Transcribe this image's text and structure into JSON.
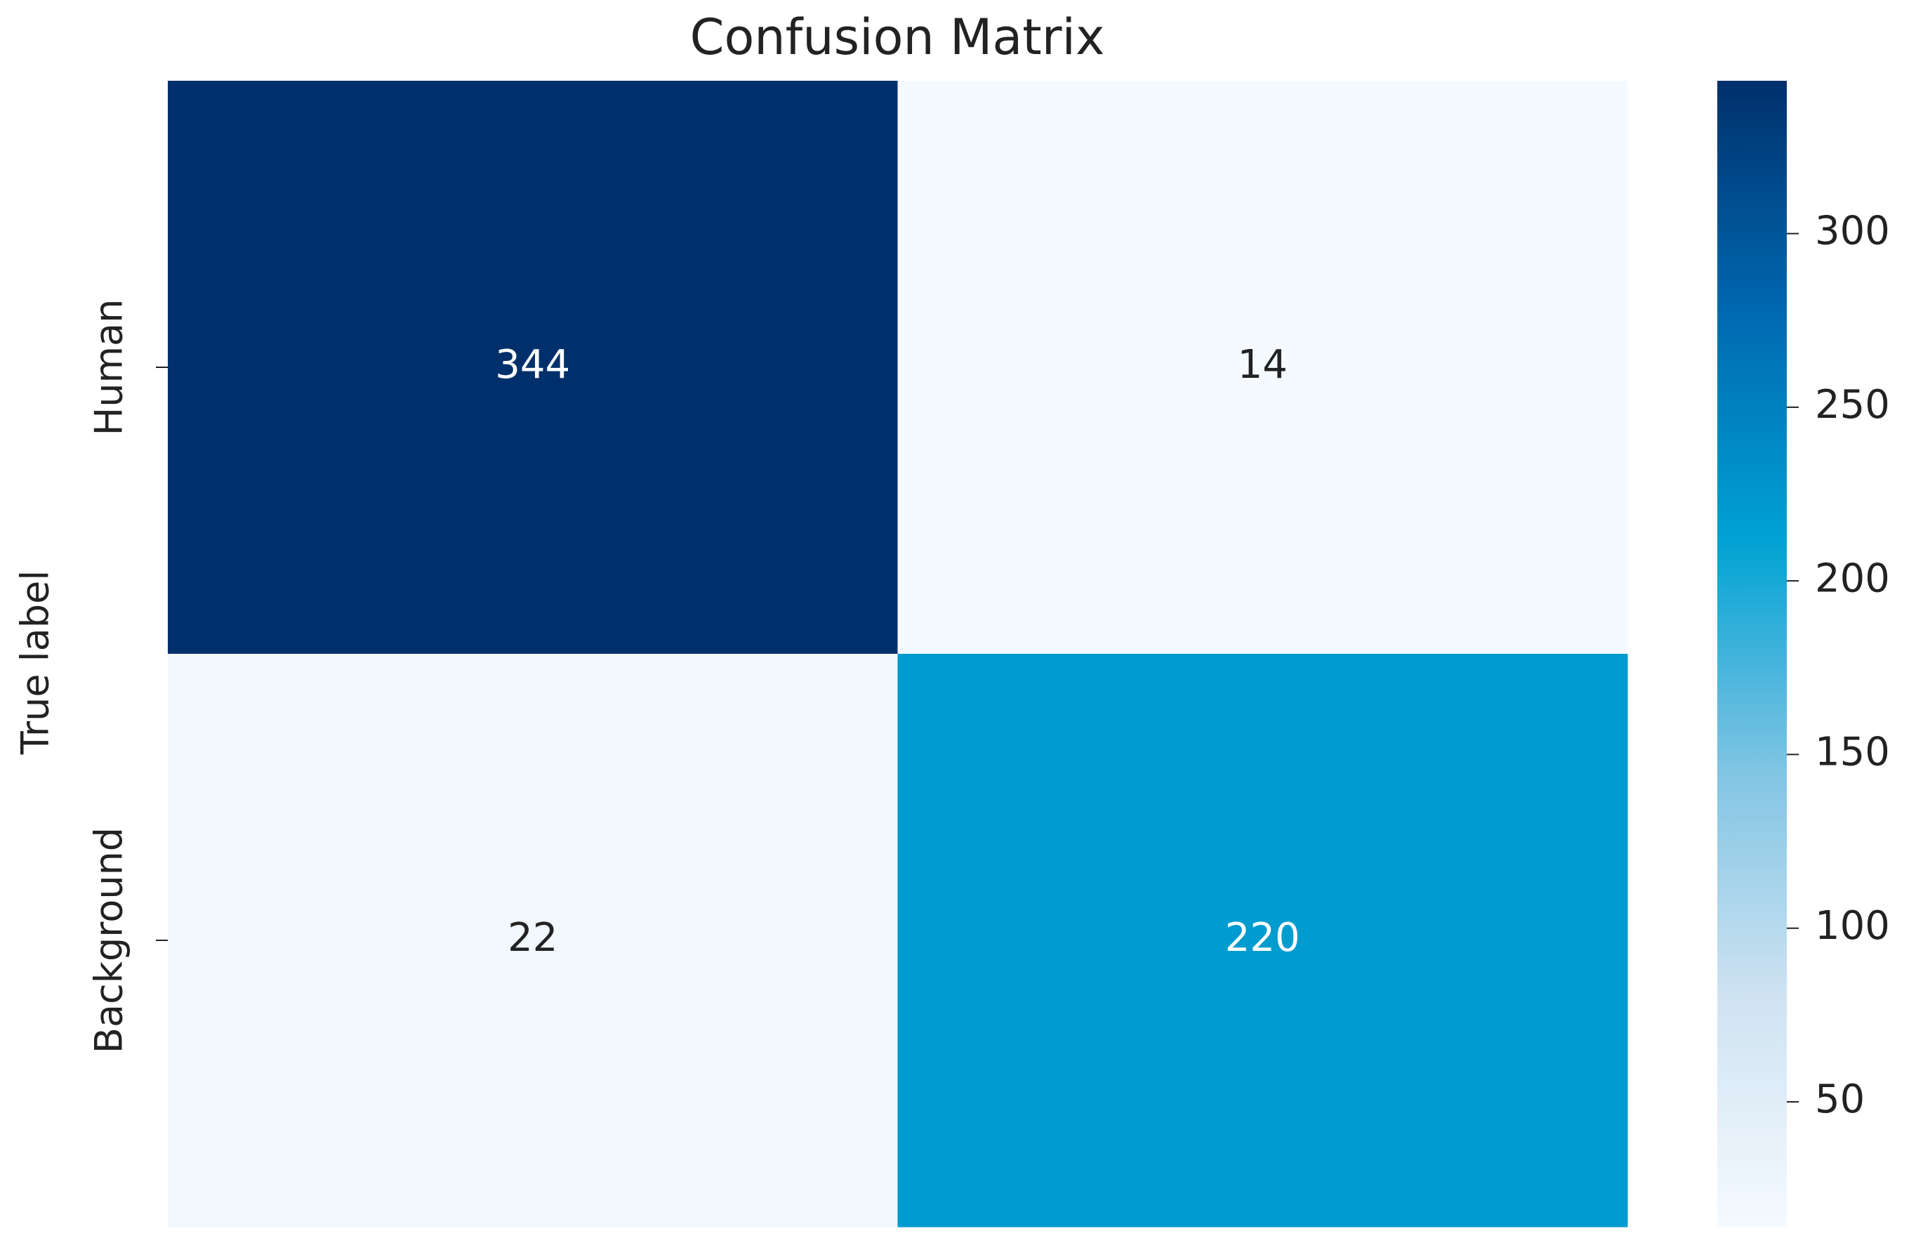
{
  "chart_data": {
    "type": "heatmap",
    "title": "Confusion Matrix",
    "y_label": "True label",
    "rows": [
      "Human",
      "Background"
    ],
    "values": [
      [
        344,
        14
      ],
      [
        22,
        220
      ]
    ],
    "colorscale": [
      "#f5faff",
      "#cfe3f2",
      "#7fc4e3",
      "#00a2d3",
      "#0068b0",
      "#00306b"
    ],
    "clim": [
      14,
      344
    ],
    "cticks": [
      50,
      100,
      150,
      200,
      250,
      300
    ]
  }
}
